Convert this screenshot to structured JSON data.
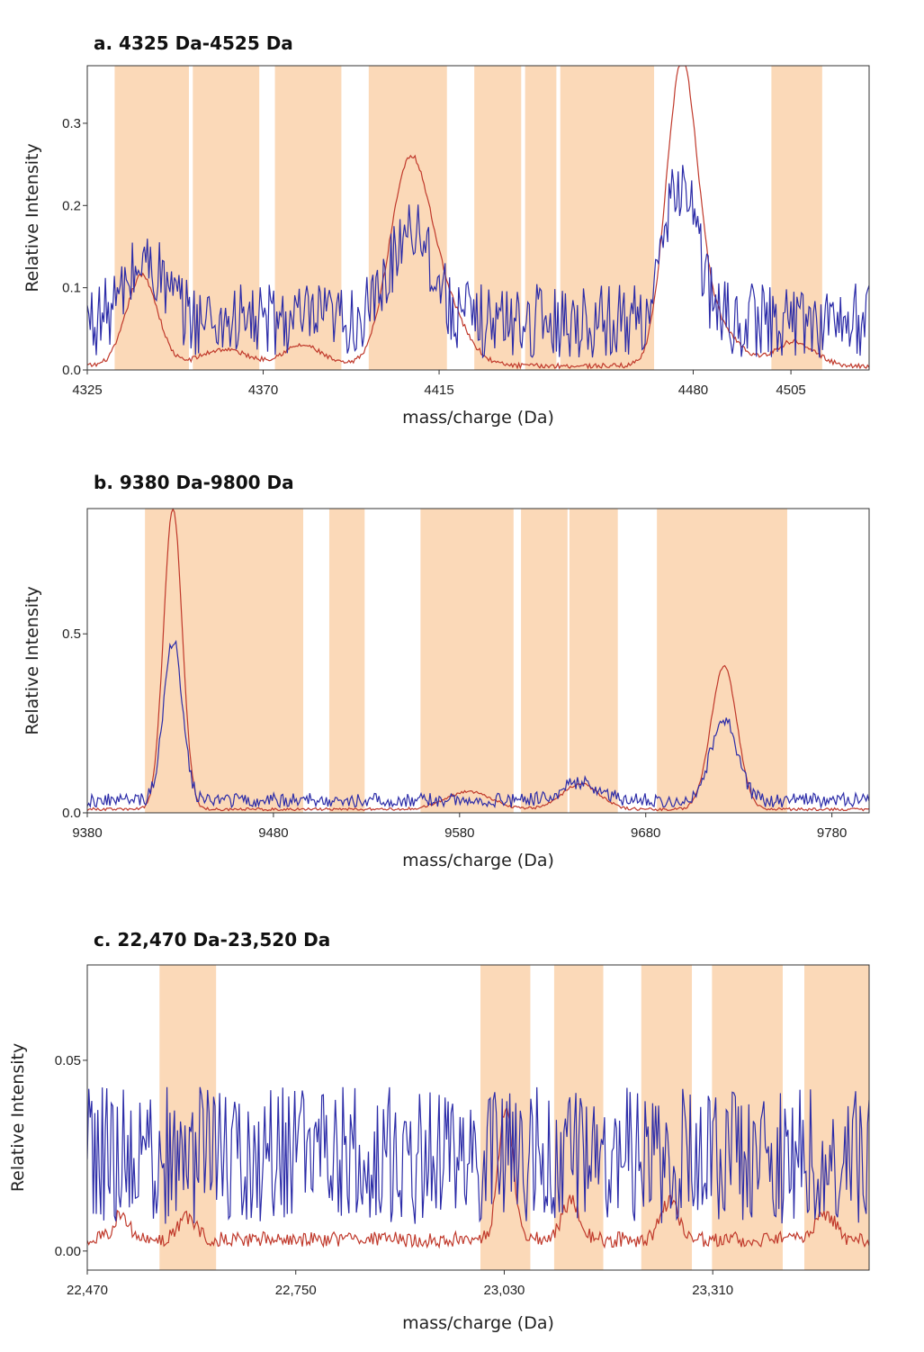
{
  "chart_data": [
    {
      "panel": "a",
      "type": "line",
      "title": "a. 4325 Da-4525 Da",
      "xlabel": "mass/charge (Da)",
      "ylabel": "Relative Intensity",
      "xlim": [
        4325,
        4525
      ],
      "ylim": [
        0,
        0.37
      ],
      "xticks": [
        4325,
        4370,
        4415,
        4480,
        4505
      ],
      "xtick_labels": [
        "4325",
        "4370",
        "4415",
        "4480",
        "4505"
      ],
      "yticks": [
        0,
        0.1,
        0.2,
        0.3
      ],
      "ytick_labels": [
        "0.0",
        "0.1",
        "0.2",
        "0.3"
      ],
      "highlight_ranges": [
        [
          4332,
          4351
        ],
        [
          4352,
          4369
        ],
        [
          4373,
          4390
        ],
        [
          4397,
          4417
        ],
        [
          4424,
          4436
        ],
        [
          4437,
          4445
        ],
        [
          4446,
          4470
        ],
        [
          4500,
          4513
        ]
      ],
      "series": [
        {
          "color": "#c0392b",
          "noise": 0.003,
          "peaks": [
            [
              4339,
              0.11,
              4
            ],
            [
              4360,
              0.02,
              6
            ],
            [
              4380,
              0.025,
              5
            ],
            [
              4407,
              0.22,
              5
            ],
            [
              4415,
              0.08,
              6
            ],
            [
              4477,
              0.35,
              4
            ],
            [
              4485,
              0.05,
              6
            ],
            [
              4506,
              0.03,
              5
            ]
          ],
          "baseline": 0.005
        },
        {
          "color": "#2c2ca8",
          "noise": 0.045,
          "peaks": [
            [
              4340,
              0.07,
              5
            ],
            [
              4408,
              0.12,
              5
            ],
            [
              4477,
              0.17,
              4
            ]
          ],
          "baseline": 0.06
        }
      ]
    },
    {
      "panel": "b",
      "type": "line",
      "title": "b. 9380 Da-9800 Da",
      "xlabel": "mass/charge (Da)",
      "ylabel": "Relative Intensity",
      "xlim": [
        9380,
        9800
      ],
      "ylim": [
        0,
        0.85
      ],
      "xticks": [
        9380,
        9480,
        9580,
        9680,
        9780
      ],
      "xtick_labels": [
        "9380",
        "9480",
        "9580",
        "9680",
        "9780"
      ],
      "yticks": [
        0,
        0.5
      ],
      "ytick_labels": [
        "0.0",
        "0.5"
      ],
      "highlight_ranges": [
        [
          9411,
          9496
        ],
        [
          9510,
          9529
        ],
        [
          9559,
          9609
        ],
        [
          9613,
          9638
        ],
        [
          9639,
          9665
        ],
        [
          9686,
          9756
        ]
      ],
      "series": [
        {
          "color": "#c0392b",
          "noise": 0.004,
          "peaks": [
            [
              9426,
              0.84,
              5
            ],
            [
              9585,
              0.05,
              12
            ],
            [
              9645,
              0.07,
              10
            ],
            [
              9722,
              0.4,
              7
            ]
          ],
          "baseline": 0.01
        },
        {
          "color": "#2c2ca8",
          "noise": 0.02,
          "peaks": [
            [
              9426,
              0.45,
              5
            ],
            [
              9645,
              0.05,
              10
            ],
            [
              9722,
              0.23,
              7
            ]
          ],
          "baseline": 0.035
        }
      ]
    },
    {
      "panel": "c",
      "type": "line",
      "title": "c. 22,470 Da-23,520 Da",
      "xlabel": "mass/charge (Da)",
      "ylabel": "Relative Intensity",
      "xlim": [
        22470,
        23520
      ],
      "ylim": [
        -0.005,
        0.075
      ],
      "xticks": [
        22470,
        22750,
        23030,
        23310
      ],
      "xtick_labels": [
        "22,470",
        "22,750",
        "23,030",
        "23,310"
      ],
      "yticks": [
        0,
        0.05
      ],
      "ytick_labels": [
        "0.00",
        "0.05"
      ],
      "highlight_ranges": [
        [
          22567,
          22643
        ],
        [
          22998,
          23065
        ],
        [
          23097,
          23163
        ],
        [
          23214,
          23282
        ],
        [
          23309,
          23404
        ],
        [
          23433,
          23520
        ]
      ],
      "series": [
        {
          "color": "#c0392b",
          "noise": 0.002,
          "peaks": [
            [
              22515,
              0.007,
              10
            ],
            [
              22605,
              0.006,
              12
            ],
            [
              23032,
              0.034,
              10
            ],
            [
              23120,
              0.01,
              12
            ],
            [
              23252,
              0.01,
              12
            ],
            [
              23462,
              0.007,
              12
            ]
          ],
          "baseline": 0.003
        },
        {
          "color": "#2c2ca8",
          "noise": 0.018,
          "peaks": [],
          "baseline": 0.025
        }
      ]
    }
  ]
}
